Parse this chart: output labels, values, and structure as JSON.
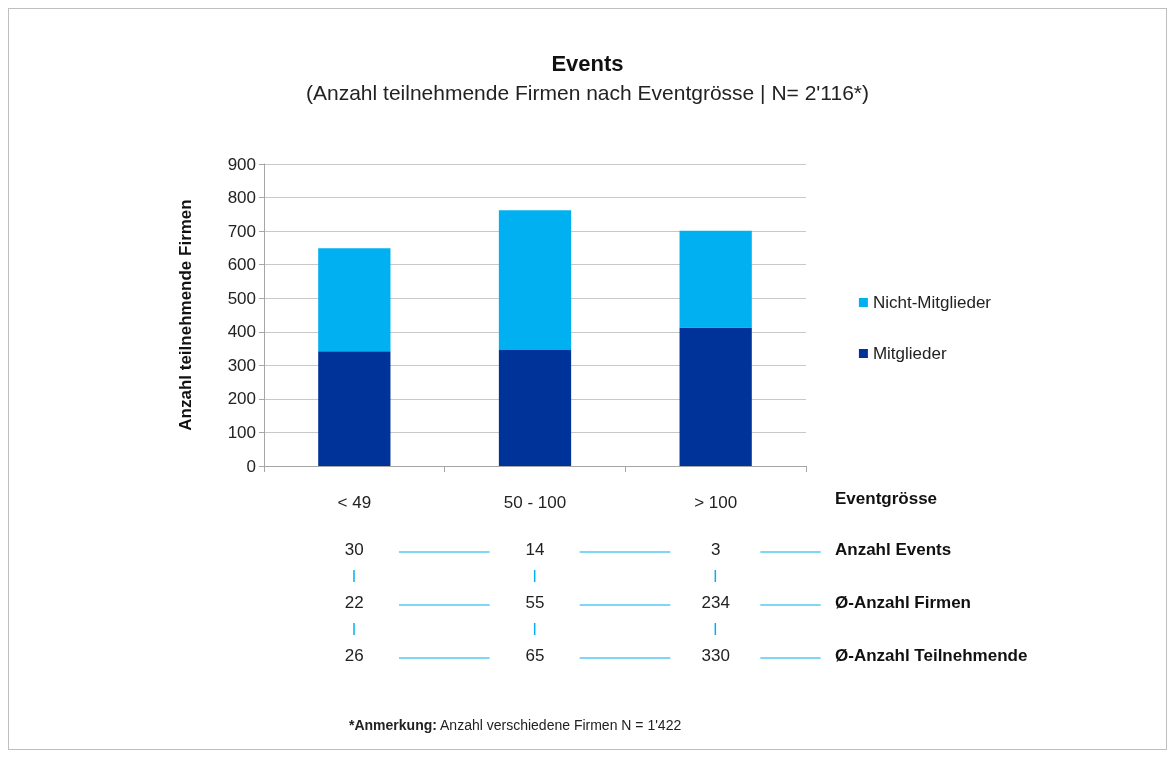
{
  "chart_data": {
    "type": "bar",
    "title": "Events",
    "subtitle": "(Anzahl teilnehmende Firmen nach Eventgrösse | N= 2'116*)",
    "xlabel": "Eventgrösse",
    "ylabel": "Anzahl teilnehmende Firmen",
    "categories": [
      "< 49",
      "50 - 100",
      "> 100"
    ],
    "series": [
      {
        "name": "Mitglieder",
        "color": "#003399",
        "values": [
          342,
          346,
          413
        ]
      },
      {
        "name": "Nicht-Mitglieder",
        "color": "#00b0f0",
        "values": [
          307,
          416,
          288
        ]
      }
    ],
    "stacked": true,
    "ylim": [
      0,
      900
    ],
    "yticks": [
      0,
      100,
      200,
      300,
      400,
      500,
      600,
      700,
      800,
      900
    ],
    "grid": "y",
    "legend": "right",
    "annotations": [
      "30",
      "14",
      "3",
      "Anzahl Events",
      "22",
      "55",
      "234",
      "Ø-Anzahl Firmen",
      "26",
      "65",
      "330",
      "Ø-Anzahl Teilnehmende",
      "*Anmerkung: Anzahl verschiedene Firmen N = 1'422"
    ]
  }
}
